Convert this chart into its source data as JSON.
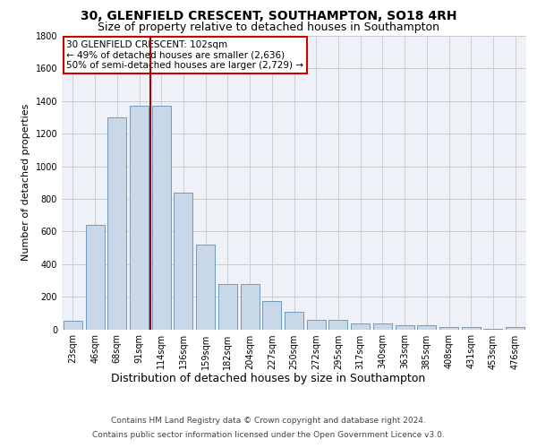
{
  "title_line1": "30, GLENFIELD CRESCENT, SOUTHAMPTON, SO18 4RH",
  "title_line2": "Size of property relative to detached houses in Southampton",
  "xlabel": "Distribution of detached houses by size in Southampton",
  "ylabel": "Number of detached properties",
  "categories": [
    "23sqm",
    "46sqm",
    "68sqm",
    "91sqm",
    "114sqm",
    "136sqm",
    "159sqm",
    "182sqm",
    "204sqm",
    "227sqm",
    "250sqm",
    "272sqm",
    "295sqm",
    "317sqm",
    "340sqm",
    "363sqm",
    "385sqm",
    "408sqm",
    "431sqm",
    "453sqm",
    "476sqm"
  ],
  "values": [
    50,
    640,
    1300,
    1370,
    1370,
    840,
    520,
    275,
    275,
    175,
    105,
    55,
    55,
    35,
    35,
    25,
    25,
    15,
    15,
    5,
    15
  ],
  "bar_color": "#c8d8e8",
  "bar_edge_color": "#7099bb",
  "vline_x_index": 3.5,
  "vline_color": "#aa0000",
  "annotation_text": "30 GLENFIELD CRESCENT: 102sqm\n← 49% of detached houses are smaller (2,636)\n50% of semi-detached houses are larger (2,729) →",
  "annotation_box_color": "#ffffff",
  "annotation_box_edge_color": "#cc0000",
  "ylim": [
    0,
    1800
  ],
  "yticks": [
    0,
    200,
    400,
    600,
    800,
    1000,
    1200,
    1400,
    1600,
    1800
  ],
  "grid_color": "#cccccc",
  "background_color": "#eef2f8",
  "footer_line1": "Contains HM Land Registry data © Crown copyright and database right 2024.",
  "footer_line2": "Contains public sector information licensed under the Open Government Licence v3.0.",
  "title_fontsize": 10,
  "subtitle_fontsize": 9,
  "tick_fontsize": 7,
  "xlabel_fontsize": 9,
  "ylabel_fontsize": 8,
  "annotation_fontsize": 7.5,
  "footer_fontsize": 6.5
}
